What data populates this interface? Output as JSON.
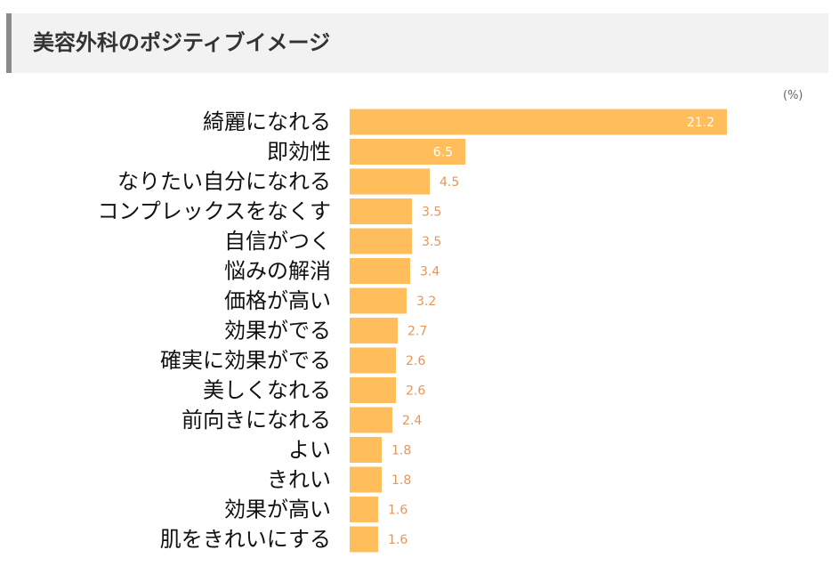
{
  "header": {
    "title": "美容外科のポジティブイメージ"
  },
  "unit_label": "(%)",
  "colors": {
    "bar": "#ffbd5c",
    "value_text": "#e8955a",
    "header_bg": "#f2f2f2",
    "header_accent": "#8a8a8a"
  },
  "chart_data": {
    "type": "bar",
    "orientation": "horizontal",
    "title": "美容外科のポジティブイメージ",
    "unit": "(%)",
    "xlim": [
      0,
      22
    ],
    "categories": [
      "綺麗になれる",
      "即効性",
      "なりたい自分になれる",
      "コンプレックスをなくす",
      "自信がつく",
      "悩みの解消",
      "価格が高い",
      "効果がでる",
      "確実に効果がでる",
      "美しくなれる",
      "前向きになれる",
      "よい",
      "きれい",
      "効果が高い",
      "肌をきれいにする"
    ],
    "values": [
      21.2,
      6.5,
      4.5,
      3.5,
      3.5,
      3.4,
      3.2,
      2.7,
      2.6,
      2.6,
      2.4,
      1.8,
      1.8,
      1.6,
      1.6
    ],
    "value_labels": [
      "21.2",
      "6.5",
      "4.5",
      "3.5",
      "3.5",
      "3.4",
      "3.2",
      "2.7",
      "2.6",
      "2.6",
      "2.4",
      "1.8",
      "1.8",
      "1.6",
      "1.6"
    ],
    "grid": false,
    "legend": "none"
  }
}
